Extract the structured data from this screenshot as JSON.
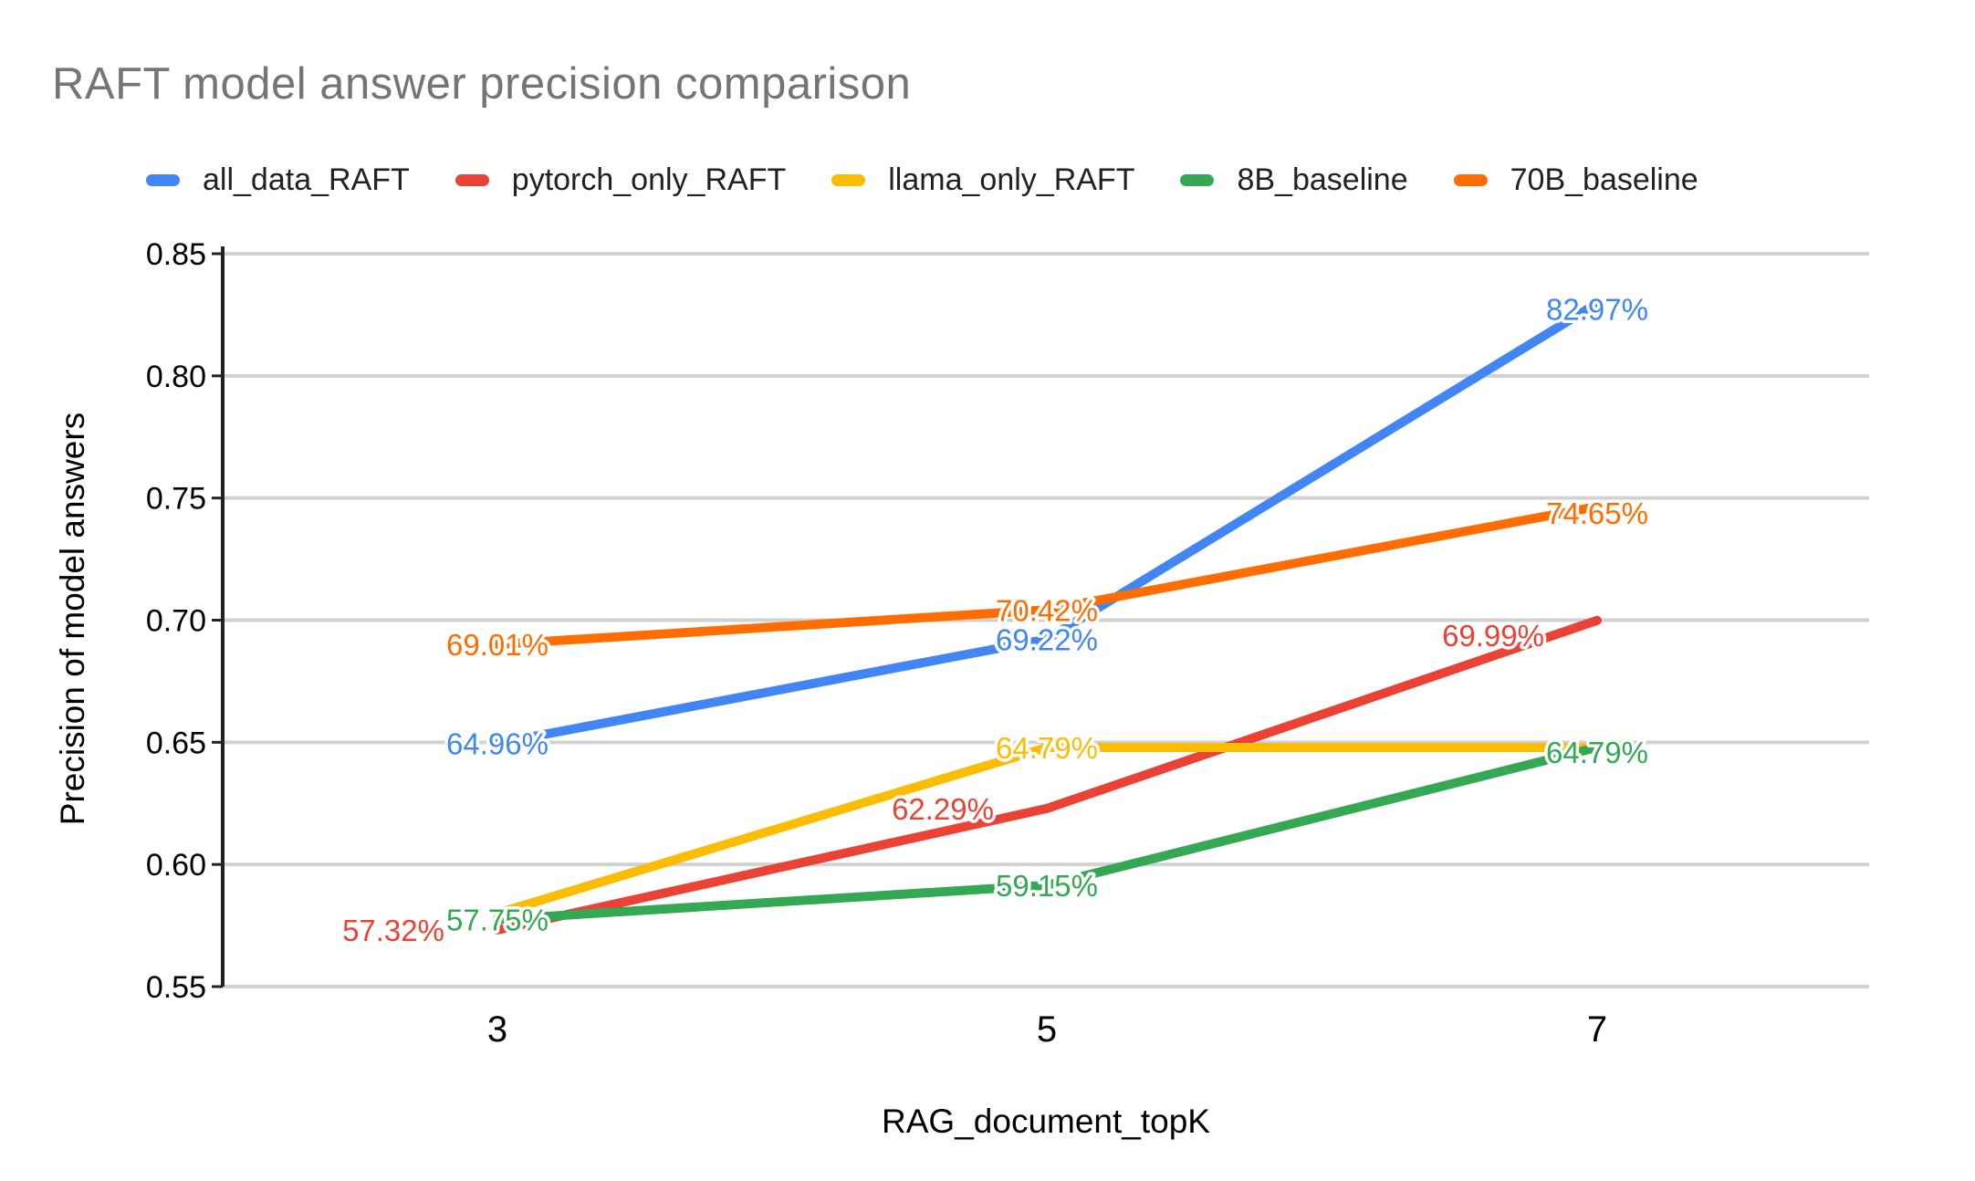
{
  "chart_data": {
    "type": "line",
    "title": "RAFT model answer precision comparison",
    "xlabel": "RAG_document_topK",
    "ylabel": "Precision of model answers",
    "categories": [
      "3",
      "5",
      "7"
    ],
    "ylim": [
      0.55,
      0.85
    ],
    "y_ticks": [
      "0.55",
      "0.60",
      "0.65",
      "0.70",
      "0.75",
      "0.80",
      "0.85"
    ],
    "grid": true,
    "legend_position": "top",
    "series": [
      {
        "name": "all_data_RAFT",
        "color": "#4285F4",
        "values_percent": [
          64.96,
          69.22,
          82.97
        ],
        "point_labels": [
          "64.96%",
          "69.22%",
          "82.97%"
        ],
        "label_visible": [
          true,
          true,
          true
        ],
        "label_align": [
          "center",
          "center",
          "center"
        ],
        "label_dy": [
          0,
          0,
          6
        ]
      },
      {
        "name": "pytorch_only_RAFT",
        "color": "#EA4335",
        "values_percent": [
          57.32,
          62.29,
          69.99
        ],
        "point_labels": [
          "57.32%",
          "62.29%",
          "69.99%"
        ],
        "label_visible": [
          true,
          true,
          true
        ],
        "label_align": [
          "left",
          "left",
          "left"
        ],
        "label_dy": [
          0,
          0,
          16
        ]
      },
      {
        "name": "llama_only_RAFT",
        "color": "#FBBC04",
        "values_percent": [
          58.0,
          64.79,
          64.79
        ],
        "point_labels": [
          "",
          "64.79%",
          "64.79%"
        ],
        "label_visible": [
          false,
          true,
          false
        ],
        "label_align": [
          "center",
          "center",
          "center"
        ],
        "label_dy": [
          0,
          0,
          0
        ]
      },
      {
        "name": "8B_baseline",
        "color": "#34A853",
        "values_percent": [
          57.75,
          59.15,
          64.79
        ],
        "point_labels": [
          "57.75%",
          "59.15%",
          "64.79%"
        ],
        "label_visible": [
          true,
          true,
          true
        ],
        "label_align": [
          "center",
          "center",
          "center"
        ],
        "label_dy": [
          0,
          0,
          5
        ]
      },
      {
        "name": "70B_baseline",
        "color": "#FF6D01",
        "values_percent": [
          69.01,
          70.42,
          74.65
        ],
        "point_labels": [
          "69.01%",
          "70.42%",
          "74.65%"
        ],
        "label_visible": [
          true,
          true,
          true
        ],
        "label_align": [
          "center",
          "center",
          "center"
        ],
        "label_dy": [
          0,
          0,
          7
        ]
      }
    ]
  },
  "colors": {
    "title_text": "#757575",
    "legend_text": "#212121",
    "tick_text": "#000000",
    "axis_title_text": "#000000",
    "axis_line": "#222222",
    "gridline": "#d2d2d2",
    "background": "#ffffff",
    "label_halo": "#ffffff"
  }
}
